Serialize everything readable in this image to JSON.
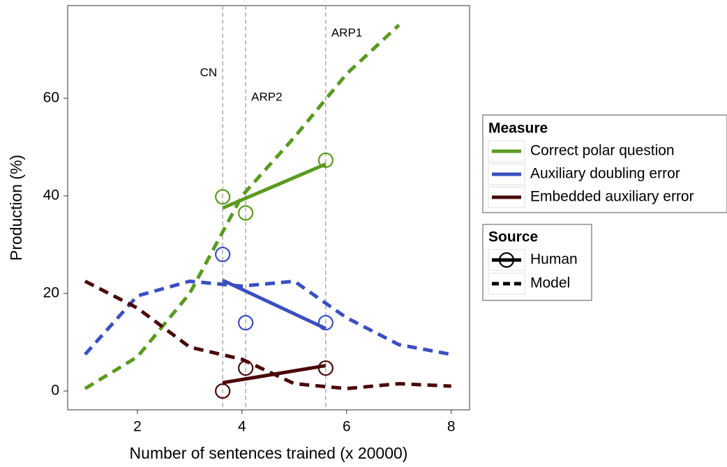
{
  "chart_data": {
    "type": "line",
    "xlabel": "Number of sentences trained (x 20000)",
    "ylabel": "Production (%)",
    "xlim": [
      0.667,
      8.35
    ],
    "ylim": [
      -3.86,
      79
    ],
    "xticks": [
      2,
      4,
      6,
      8
    ],
    "yticks": [
      0,
      20,
      40,
      60
    ],
    "x": [
      1,
      2,
      3,
      4,
      5,
      6,
      7,
      8
    ],
    "human_x": [
      3.63,
      4.07,
      5.6
    ],
    "fit_x": [
      3.63,
      5.6
    ],
    "vlines": [
      {
        "label": "CN",
        "value": 3.63
      },
      {
        "label": "ARP2",
        "value": 4.07
      },
      {
        "label": "ARP1",
        "value": 5.6
      }
    ],
    "legend_title": "Measure",
    "source_title": "Source",
    "sources": [
      "Human",
      "Model"
    ],
    "series": [
      {
        "name": "Correct polar question",
        "color": "#5a9a1f",
        "values": [
          0.5,
          7,
          20,
          40,
          52,
          65,
          75,
          null
        ],
        "human": [
          39.8,
          36.5,
          47.3
        ],
        "fit": [
          37.5,
          46.5
        ]
      },
      {
        "name": "Auxiliary doubling error",
        "color": "#3a4fc0",
        "values": [
          7.5,
          19.5,
          22.5,
          21.5,
          22.5,
          15,
          9.5,
          7.5
        ],
        "human": [
          28,
          14,
          14
        ],
        "fit": [
          22.7,
          12.8
        ]
      },
      {
        "name": "Embedded auxiliary error",
        "color": "#4a0808",
        "values": [
          22.5,
          17,
          9,
          6.5,
          1.5,
          0.5,
          1.5,
          1
        ],
        "human": [
          0,
          4.7,
          4.7
        ],
        "fit": [
          1.7,
          5.2
        ]
      }
    ]
  }
}
